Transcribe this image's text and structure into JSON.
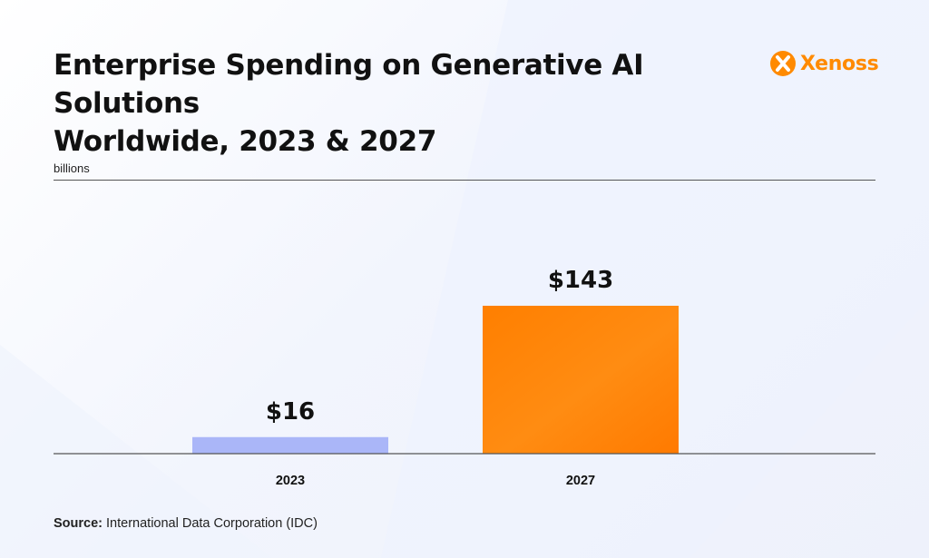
{
  "header": {
    "title_line1": "Enterprise Spending on Generative AI Solutions",
    "title_line2": "Worldwide, 2023 & 2027",
    "unit_label": "billions"
  },
  "logo": {
    "text": "Xenoss",
    "icon": "xenoss-logo-icon",
    "color": "#ff8a00"
  },
  "footer": {
    "source_label": "Source:",
    "source_text": "International Data Corporation (IDC)"
  },
  "chart_data": {
    "type": "bar",
    "categories": [
      "2023",
      "2027"
    ],
    "values": [
      16,
      143
    ],
    "value_labels": [
      "$16",
      "$143"
    ],
    "colors": [
      "#aab6f8",
      "#ff8200"
    ],
    "ylabel": "billions",
    "ylim": [
      0,
      200
    ],
    "grid": false
  }
}
